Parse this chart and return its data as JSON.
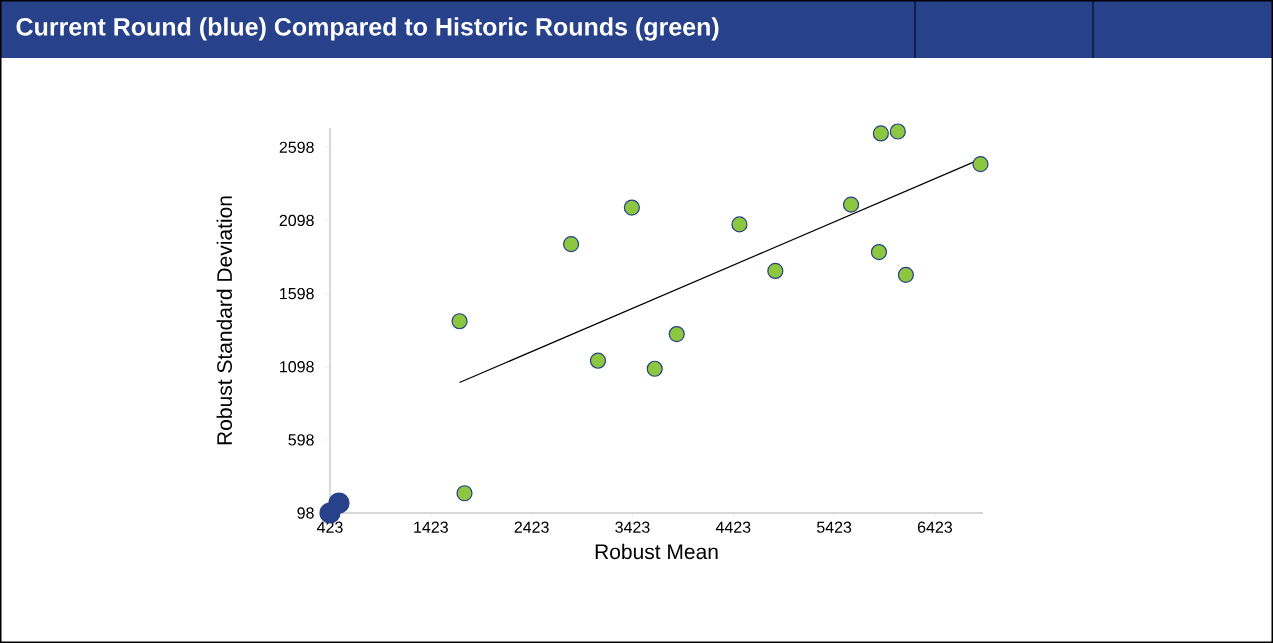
{
  "chart_data": {
    "type": "scatter",
    "title": "Current Round (blue) Compared to Historic Rounds (green)",
    "xlabel": "Robust Mean",
    "ylabel": "Robust Standard Deviation",
    "xlim": [
      423,
      6900
    ],
    "ylim": [
      98,
      2730
    ],
    "xticks": [
      423,
      1423,
      2423,
      3423,
      4423,
      5423,
      6423
    ],
    "yticks": [
      98,
      598,
      1098,
      1598,
      2098,
      2598
    ],
    "grid": false,
    "marker": "circle",
    "series": [
      {
        "color": "#8dc63f",
        "x": [
          1708,
          1757,
          2814,
          3081,
          3417,
          3644,
          3862,
          4484,
          4840,
          5591,
          5868,
          5887,
          6055,
          6135,
          6875
        ],
        "values": [
          1409,
          233,
          1936,
          1139,
          2186,
          1084,
          1321,
          2071,
          1753,
          2206,
          1882,
          2693,
          2706,
          1726,
          2483
        ]
      },
      {
        "type": "line",
        "color": "#000000",
        "x": [
          1708,
          6875
        ],
        "values": [
          990,
          2517
        ],
        "marker": "none"
      },
      {
        "color": "#27418a",
        "x": [
          423,
          512
        ],
        "values": [
          98,
          166
        ]
      }
    ]
  }
}
